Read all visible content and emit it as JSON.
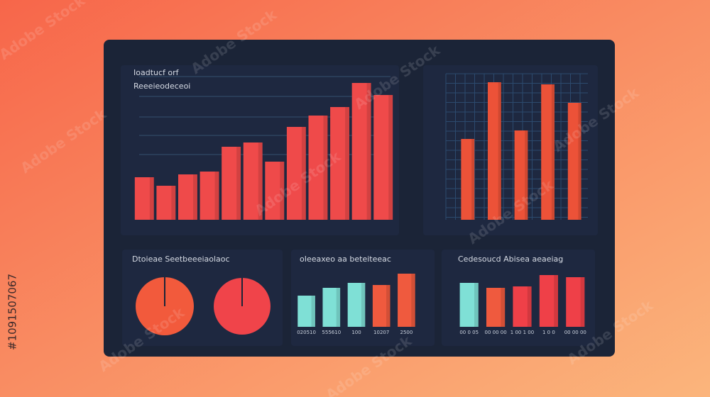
{
  "watermark": {
    "brand": "Adobe Stock",
    "id": "#1091507067"
  },
  "chart_data": [
    {
      "type": "bar",
      "title": "Ioadtucf orf",
      "subtitle": "Reeeieodeceoi",
      "values": [
        60,
        48,
        64,
        68,
        103,
        109,
        82,
        131,
        147,
        159,
        193,
        176
      ],
      "colors": [
        "#ef4a4a",
        "#ef4a4a",
        "#ef4a4a",
        "#ef4a4a",
        "#ef4a4a",
        "#ef4a4a",
        "#ef4a4a",
        "#ef4a4a",
        "#ef4a4a",
        "#ef4a4a",
        "#ef4a4a",
        "#ef4a4a"
      ],
      "ylim": [
        0,
        200
      ]
    },
    {
      "type": "bar",
      "values": [
        114,
        194,
        126,
        191,
        165
      ],
      "colors": [
        "#ec5238",
        "#ec5238",
        "#ec5238",
        "#ec5238",
        "#ec5238"
      ],
      "ylim": [
        0,
        200
      ],
      "grid": true
    },
    {
      "type": "pie",
      "title": "Dtoieae Seetbeeeiaolaoc",
      "values": [
        100
      ],
      "colors": [
        "#f25a3c"
      ]
    },
    {
      "type": "pie",
      "values": [
        100
      ],
      "colors": [
        "#f0444a"
      ]
    },
    {
      "type": "bar",
      "title": "oIeeaxeo aa beteiteeac",
      "categories": [
        "020510",
        "555610",
        "100",
        "10207",
        "2500"
      ],
      "values": [
        44,
        55,
        62,
        59,
        75
      ],
      "colors": [
        "#7fe0d6",
        "#7fe0d6",
        "#7fe0d6",
        "#ef5a3e",
        "#ef5a3e"
      ],
      "ylim": [
        0,
        80
      ]
    },
    {
      "type": "bar",
      "title": "Cedesoucd Abisea aeaeiag",
      "categories": [
        "00 0 05",
        "00 00 00",
        "1 00 1 00",
        "1 0 0",
        "00 00 00"
      ],
      "values": [
        62,
        55,
        57,
        73,
        70
      ],
      "colors": [
        "#7fe0d6",
        "#ef5a3e",
        "#ef4048",
        "#ef4048",
        "#ef4048"
      ],
      "ylim": [
        0,
        80
      ]
    }
  ]
}
